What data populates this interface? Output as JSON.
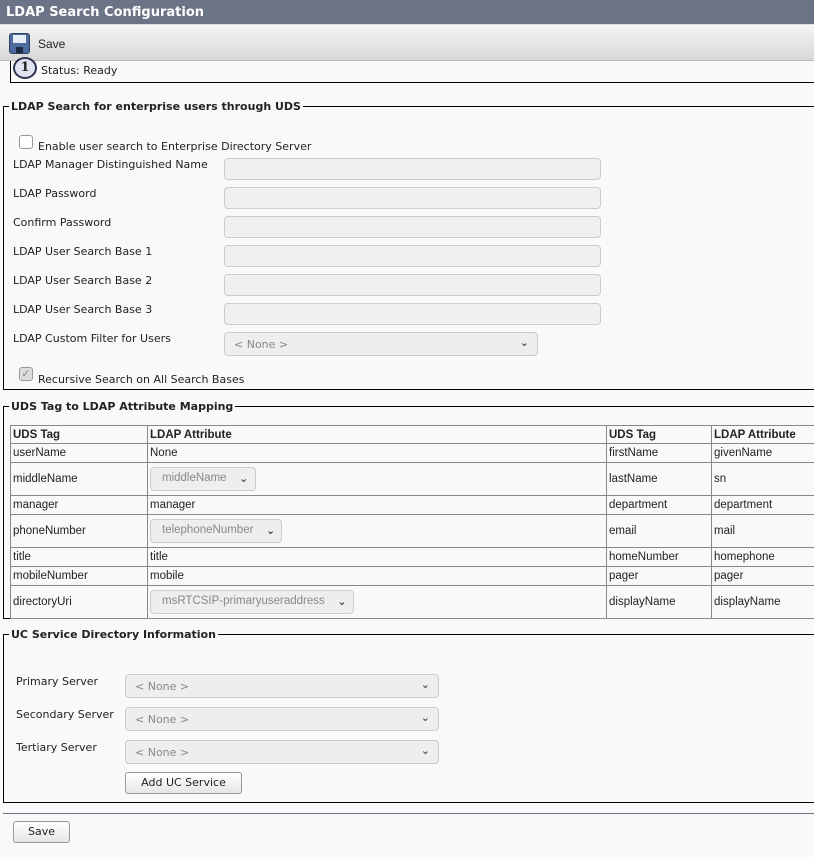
{
  "title": "LDAP Search Configuration",
  "toolbar": {
    "save_label": "Save",
    "save_icon": "floppy-disk-icon"
  },
  "status": {
    "icon": "info-icon",
    "text": "Status: Ready"
  },
  "ldap_search": {
    "legend": "LDAP Search for enterprise users through UDS",
    "enable_label": "Enable user search to Enterprise Directory Server",
    "enable_checked": false,
    "fields": [
      {
        "label": "LDAP Manager Distinguished Name",
        "value": ""
      },
      {
        "label": "LDAP Password",
        "value": ""
      },
      {
        "label": "Confirm Password",
        "value": ""
      },
      {
        "label": "LDAP User Search Base 1",
        "value": ""
      },
      {
        "label": "LDAP User Search Base 2",
        "value": ""
      },
      {
        "label": "LDAP User Search Base 3",
        "value": ""
      }
    ],
    "custom_filter_label": "LDAP Custom Filter for Users",
    "custom_filter_value": "< None >",
    "recursive_label": "Recursive Search on All Search Bases",
    "recursive_checked": true
  },
  "mapping": {
    "legend": "UDS Tag to LDAP Attribute Mapping",
    "headers": [
      "UDS Tag",
      "LDAP Attribute",
      "UDS Tag",
      "LDAP Attribute"
    ],
    "rows": [
      [
        "userName",
        "None",
        "firstName",
        "givenName"
      ],
      [
        "middleName",
        "middleName",
        "lastName",
        "sn"
      ],
      [
        "manager",
        "manager",
        "department",
        "department"
      ],
      [
        "phoneNumber",
        "telephoneNumber",
        "email",
        "mail"
      ],
      [
        "title",
        "title",
        "homeNumber",
        "homephone"
      ],
      [
        "mobileNumber",
        "mobile",
        "pager",
        "pager"
      ],
      [
        "directoryUri",
        "msRTCSIP-primaryuseraddress",
        "displayName",
        "displayName"
      ]
    ]
  },
  "uc_service": {
    "legend": "UC Service Directory Information",
    "primary_label": "Primary Server",
    "primary_value": "< None >",
    "secondary_label": "Secondary Server",
    "secondary_value": "< None >",
    "tertiary_label": "Tertiary Server",
    "tertiary_value": "< None >",
    "add_label": "Add UC Service"
  },
  "footer": {
    "save_label": "Save"
  }
}
